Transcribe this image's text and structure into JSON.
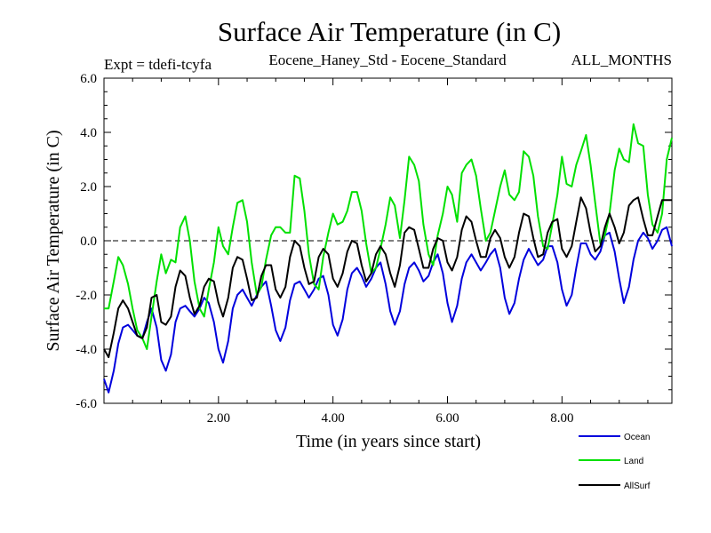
{
  "chart_data": {
    "type": "line",
    "title": "Surface Air Temperature (in C)",
    "subtitle_left": "Expt = tdefi-tcyfa",
    "subtitle_center": "Eocene_Haney_Std - Eocene_Standard",
    "subtitle_right": "ALL_MONTHS",
    "xlabel": "Time (in years since start)",
    "ylabel": "Surface Air Temperature (in C)",
    "xlim": [
      0.0,
      9.92
    ],
    "ylim": [
      -6.0,
      6.0
    ],
    "xticks": [
      2.0,
      4.0,
      6.0,
      8.0
    ],
    "xtick_labels": [
      "2.00",
      "4.00",
      "6.00",
      "8.00"
    ],
    "yticks": [
      -6.0,
      -4.0,
      -2.0,
      0.0,
      2.0,
      4.0,
      6.0
    ],
    "ytick_labels": [
      "-6.0",
      "-4.0",
      "-2.0",
      "0.0",
      "2.0",
      "4.0",
      "6.0"
    ],
    "reference_line": {
      "y": 0.0,
      "style": "dashed"
    },
    "legend_position": "bottom-right",
    "series": [
      {
        "name": "Ocean",
        "color": "#0000dd",
        "x": [
          0.0,
          0.08,
          0.17,
          0.25,
          0.33,
          0.42,
          0.5,
          0.58,
          0.67,
          0.75,
          0.83,
          0.92,
          1.0,
          1.08,
          1.17,
          1.25,
          1.33,
          1.42,
          1.5,
          1.58,
          1.67,
          1.75,
          1.83,
          1.92,
          2.0,
          2.08,
          2.17,
          2.25,
          2.33,
          2.42,
          2.5,
          2.58,
          2.67,
          2.75,
          2.83,
          2.92,
          3.0,
          3.08,
          3.17,
          3.25,
          3.33,
          3.42,
          3.5,
          3.58,
          3.67,
          3.75,
          3.83,
          3.92,
          4.0,
          4.08,
          4.17,
          4.25,
          4.33,
          4.42,
          4.5,
          4.58,
          4.67,
          4.75,
          4.83,
          4.92,
          5.0,
          5.08,
          5.17,
          5.25,
          5.33,
          5.42,
          5.5,
          5.58,
          5.67,
          5.75,
          5.83,
          5.92,
          6.0,
          6.08,
          6.17,
          6.25,
          6.33,
          6.42,
          6.5,
          6.58,
          6.67,
          6.75,
          6.83,
          6.92,
          7.0,
          7.08,
          7.17,
          7.25,
          7.33,
          7.42,
          7.5,
          7.58,
          7.67,
          7.75,
          7.83,
          7.92,
          8.0,
          8.08,
          8.17,
          8.25,
          8.33,
          8.42,
          8.5,
          8.58,
          8.67,
          8.75,
          8.83,
          8.92,
          9.0,
          9.08,
          9.17,
          9.25,
          9.33,
          9.42,
          9.5,
          9.58,
          9.67,
          9.75,
          9.83,
          9.92
        ],
        "values": [
          -5.1,
          -5.6,
          -4.8,
          -3.8,
          -3.2,
          -3.1,
          -3.3,
          -3.5,
          -3.6,
          -3.0,
          -2.5,
          -3.2,
          -4.4,
          -4.8,
          -4.2,
          -3.0,
          -2.5,
          -2.4,
          -2.6,
          -2.8,
          -2.5,
          -2.1,
          -2.3,
          -3.0,
          -4.0,
          -4.5,
          -3.7,
          -2.5,
          -2.0,
          -1.8,
          -2.1,
          -2.4,
          -2.0,
          -1.7,
          -1.5,
          -2.4,
          -3.3,
          -3.7,
          -3.2,
          -2.2,
          -1.6,
          -1.5,
          -1.8,
          -2.1,
          -1.8,
          -1.4,
          -1.3,
          -2.0,
          -3.1,
          -3.5,
          -2.9,
          -1.8,
          -1.2,
          -1.0,
          -1.3,
          -1.7,
          -1.4,
          -1.0,
          -0.8,
          -1.6,
          -2.6,
          -3.1,
          -2.6,
          -1.6,
          -1.0,
          -0.8,
          -1.1,
          -1.5,
          -1.3,
          -0.8,
          -0.5,
          -1.2,
          -2.3,
          -3.0,
          -2.4,
          -1.4,
          -0.8,
          -0.5,
          -0.8,
          -1.1,
          -0.8,
          -0.5,
          -0.3,
          -1.0,
          -2.1,
          -2.7,
          -2.3,
          -1.4,
          -0.7,
          -0.3,
          -0.6,
          -0.9,
          -0.7,
          -0.2,
          -0.2,
          -0.8,
          -1.8,
          -2.4,
          -2.0,
          -1.0,
          -0.1,
          -0.1,
          -0.5,
          -0.7,
          -0.4,
          0.2,
          0.3,
          -0.4,
          -1.4,
          -2.3,
          -1.7,
          -0.7,
          0.0,
          0.3,
          0.1,
          -0.3,
          0.0,
          0.4,
          0.5,
          -0.2
        ]
      },
      {
        "name": "Land",
        "color": "#00e000",
        "x": [
          0.0,
          0.08,
          0.17,
          0.25,
          0.33,
          0.42,
          0.5,
          0.58,
          0.67,
          0.75,
          0.83,
          0.92,
          1.0,
          1.08,
          1.17,
          1.25,
          1.33,
          1.42,
          1.5,
          1.58,
          1.67,
          1.75,
          1.83,
          1.92,
          2.0,
          2.08,
          2.17,
          2.25,
          2.33,
          2.42,
          2.5,
          2.58,
          2.67,
          2.75,
          2.83,
          2.92,
          3.0,
          3.08,
          3.17,
          3.25,
          3.33,
          3.42,
          3.5,
          3.58,
          3.67,
          3.75,
          3.83,
          3.92,
          4.0,
          4.08,
          4.17,
          4.25,
          4.33,
          4.42,
          4.5,
          4.58,
          4.67,
          4.75,
          4.83,
          4.92,
          5.0,
          5.08,
          5.17,
          5.25,
          5.33,
          5.42,
          5.5,
          5.58,
          5.67,
          5.75,
          5.83,
          5.92,
          6.0,
          6.08,
          6.17,
          6.25,
          6.33,
          6.42,
          6.5,
          6.58,
          6.67,
          6.75,
          6.83,
          6.92,
          7.0,
          7.08,
          7.17,
          7.25,
          7.33,
          7.42,
          7.5,
          7.58,
          7.67,
          7.75,
          7.83,
          7.92,
          8.0,
          8.08,
          8.17,
          8.25,
          8.33,
          8.42,
          8.5,
          8.58,
          8.67,
          8.75,
          8.83,
          8.92,
          9.0,
          9.08,
          9.17,
          9.25,
          9.33,
          9.42,
          9.5,
          9.58,
          9.67,
          9.75,
          9.83,
          9.92
        ],
        "values": [
          -2.5,
          -2.5,
          -1.5,
          -0.6,
          -0.9,
          -1.6,
          -2.5,
          -3.3,
          -3.6,
          -4.0,
          -2.8,
          -1.5,
          -0.5,
          -1.2,
          -0.7,
          -0.8,
          0.5,
          0.9,
          0.0,
          -1.5,
          -2.5,
          -2.8,
          -1.8,
          -0.8,
          0.5,
          -0.2,
          -0.5,
          0.5,
          1.4,
          1.5,
          0.7,
          -0.8,
          -2.0,
          -1.7,
          -0.7,
          0.2,
          0.5,
          0.5,
          0.3,
          0.3,
          2.4,
          2.3,
          1.1,
          -0.5,
          -1.6,
          -1.8,
          -0.6,
          0.3,
          1.0,
          0.6,
          0.7,
          1.1,
          1.8,
          1.8,
          1.1,
          -0.1,
          -1.2,
          -1.0,
          -0.3,
          0.6,
          1.6,
          1.3,
          0.1,
          1.5,
          3.1,
          2.8,
          2.2,
          0.6,
          -0.5,
          -0.9,
          0.2,
          1.0,
          2.0,
          1.7,
          0.7,
          2.5,
          2.8,
          3.0,
          2.4,
          1.2,
          0.0,
          0.3,
          1.1,
          2.0,
          2.6,
          1.7,
          1.5,
          1.8,
          3.3,
          3.1,
          2.4,
          0.9,
          -0.2,
          -0.3,
          0.6,
          1.7,
          3.1,
          2.1,
          2.0,
          2.8,
          3.3,
          3.9,
          2.8,
          1.4,
          -0.1,
          0.2,
          1.0,
          2.6,
          3.4,
          3.0,
          2.9,
          4.3,
          3.6,
          3.5,
          1.7,
          0.6,
          0.3,
          1.0,
          3.0,
          3.8
        ]
      },
      {
        "name": "AllSurf",
        "color": "#000000",
        "x": [
          0.0,
          0.08,
          0.17,
          0.25,
          0.33,
          0.42,
          0.5,
          0.58,
          0.67,
          0.75,
          0.83,
          0.92,
          1.0,
          1.08,
          1.17,
          1.25,
          1.33,
          1.42,
          1.5,
          1.58,
          1.67,
          1.75,
          1.83,
          1.92,
          2.0,
          2.08,
          2.17,
          2.25,
          2.33,
          2.42,
          2.5,
          2.58,
          2.67,
          2.75,
          2.83,
          2.92,
          3.0,
          3.08,
          3.17,
          3.25,
          3.33,
          3.42,
          3.5,
          3.58,
          3.67,
          3.75,
          3.83,
          3.92,
          4.0,
          4.08,
          4.17,
          4.25,
          4.33,
          4.42,
          4.5,
          4.58,
          4.67,
          4.75,
          4.83,
          4.92,
          5.0,
          5.08,
          5.17,
          5.25,
          5.33,
          5.42,
          5.5,
          5.58,
          5.67,
          5.75,
          5.83,
          5.92,
          6.0,
          6.08,
          6.17,
          6.25,
          6.33,
          6.42,
          6.5,
          6.58,
          6.67,
          6.75,
          6.83,
          6.92,
          7.0,
          7.08,
          7.17,
          7.25,
          7.33,
          7.42,
          7.5,
          7.58,
          7.67,
          7.75,
          7.83,
          7.92,
          8.0,
          8.08,
          8.17,
          8.25,
          8.33,
          8.42,
          8.5,
          8.58,
          8.67,
          8.75,
          8.83,
          8.92,
          9.0,
          9.08,
          9.17,
          9.25,
          9.33,
          9.42,
          9.5,
          9.58,
          9.67,
          9.75,
          9.83,
          9.92
        ],
        "values": [
          -4.0,
          -4.3,
          -3.4,
          -2.5,
          -2.2,
          -2.5,
          -3.0,
          -3.5,
          -3.6,
          -3.2,
          -2.1,
          -2.0,
          -3.0,
          -3.1,
          -2.8,
          -1.7,
          -1.1,
          -1.3,
          -2.1,
          -2.7,
          -2.4,
          -1.7,
          -1.4,
          -1.5,
          -2.3,
          -2.8,
          -2.1,
          -1.0,
          -0.6,
          -0.7,
          -1.4,
          -2.2,
          -2.1,
          -1.3,
          -0.9,
          -0.9,
          -1.8,
          -2.1,
          -1.7,
          -0.6,
          0.0,
          -0.2,
          -1.0,
          -1.6,
          -1.5,
          -0.6,
          -0.3,
          -0.5,
          -1.4,
          -1.7,
          -1.2,
          -0.4,
          0.0,
          -0.1,
          -0.9,
          -1.5,
          -1.2,
          -0.5,
          -0.2,
          -0.5,
          -1.2,
          -1.7,
          -0.9,
          0.3,
          0.5,
          0.4,
          -0.3,
          -1.0,
          -1.0,
          -0.3,
          0.1,
          0.0,
          -0.8,
          -1.1,
          -0.6,
          0.4,
          0.9,
          0.7,
          0.0,
          -0.6,
          -0.6,
          0.1,
          0.4,
          0.1,
          -0.6,
          -1.0,
          -0.6,
          0.3,
          1.0,
          0.9,
          0.1,
          -0.6,
          -0.5,
          0.3,
          0.7,
          0.8,
          -0.3,
          -0.6,
          -0.2,
          0.7,
          1.6,
          1.2,
          0.3,
          -0.4,
          -0.2,
          0.5,
          1.0,
          0.5,
          -0.1,
          0.3,
          1.3,
          1.5,
          1.6,
          0.8,
          0.2,
          0.2,
          0.9,
          1.5,
          1.5,
          1.5
        ]
      }
    ]
  }
}
